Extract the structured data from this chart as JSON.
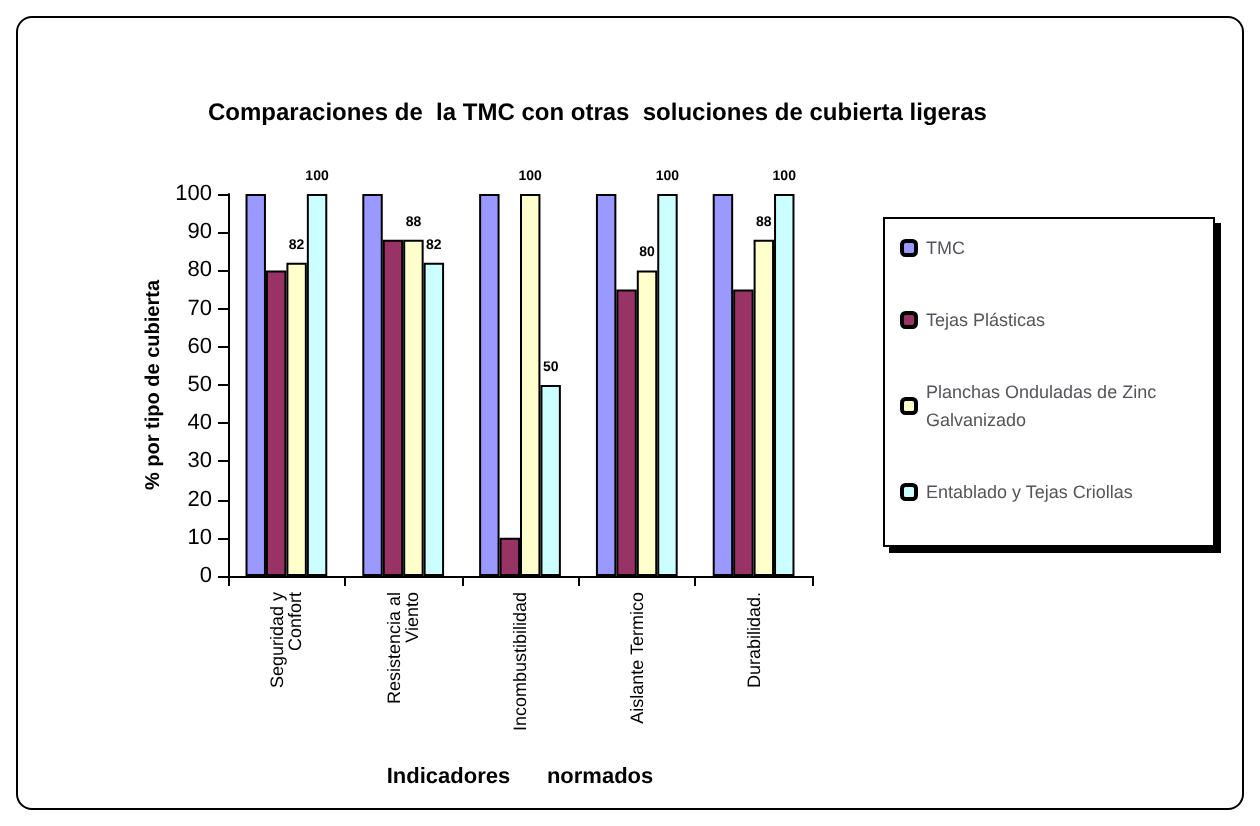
{
  "chart_data": {
    "type": "bar",
    "title": "Comparaciones de  la TMC con otras  soluciones de cubierta ligeras",
    "xlabel": "Indicadores      normados",
    "ylabel": "% por tipo de cubierta",
    "categories": [
      "Seguridad y\nConfort",
      "Resistencia al\nViento",
      "Incombustibilidad",
      "Aislante Termico",
      "Durabilidad."
    ],
    "series": [
      {
        "name": "TMC",
        "color": "#9999ff",
        "values": [
          100,
          100,
          100,
          100,
          100
        ]
      },
      {
        "name": "Tejas Plásticas",
        "color": "#993366",
        "values": [
          80,
          88,
          10,
          75,
          75
        ]
      },
      {
        "name": "Planchas Onduladas de Zinc Galvanizado",
        "color": "#ffffcc",
        "values": [
          82,
          88,
          100,
          80,
          88
        ],
        "value_labels": [
          "82",
          "88",
          "100",
          "80",
          "88"
        ]
      },
      {
        "name": "Entablado y Tejas Criollas",
        "color": "#ccffff",
        "values": [
          100,
          82,
          50,
          100,
          100
        ],
        "value_labels": [
          "100",
          "82",
          "50",
          "100",
          "100"
        ]
      }
    ],
    "ylim": [
      0,
      100
    ],
    "yticks": [
      0,
      10,
      20,
      30,
      40,
      50,
      60,
      70,
      80,
      90,
      100
    ],
    "grid": false,
    "legend": "right"
  }
}
